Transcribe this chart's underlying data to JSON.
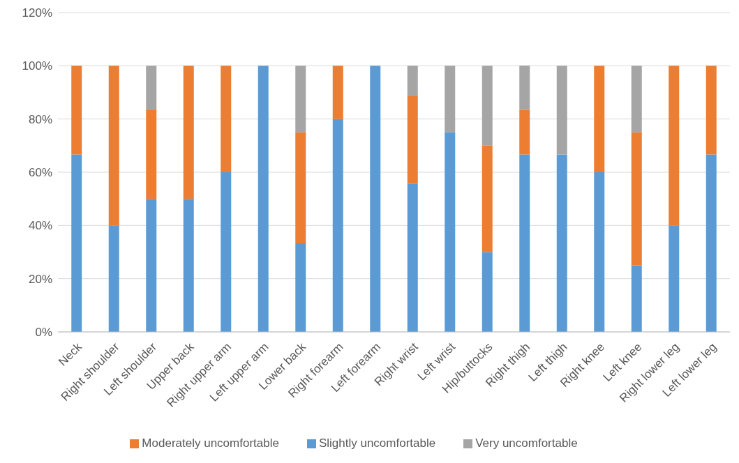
{
  "chart_data": {
    "type": "bar",
    "stacked": true,
    "categories": [
      "Neck",
      "Right shoulder",
      "Left shoulder",
      "Upper back",
      "Right upper arm",
      "Left upper arm",
      "Lower back",
      "Right forearm",
      "Left forearm",
      "Right wrist",
      "Left wrist",
      "Hip/buttocks",
      "Right thigh",
      "Left thigh",
      "Right knee",
      "Left knee",
      "Right lower leg",
      "Left lower leg"
    ],
    "series": [
      {
        "name": "Slightly uncomfortable",
        "color": "#5b9bd5",
        "values": [
          66.7,
          40,
          50,
          50,
          60,
          100,
          33.3,
          80,
          100,
          55.6,
          75,
          30,
          66.7,
          66.7,
          60,
          25,
          40,
          66.7
        ]
      },
      {
        "name": "Moderately uncomfortable",
        "color": "#ed7d31",
        "values": [
          33.3,
          60,
          33.3,
          50,
          40,
          0,
          41.7,
          20,
          0,
          33.3,
          0,
          40,
          16.7,
          0,
          40,
          50,
          60,
          33.3
        ]
      },
      {
        "name": "Very uncomfortable",
        "color": "#a5a5a5",
        "values": [
          0,
          0,
          16.7,
          0,
          0,
          0,
          25,
          0,
          0,
          11.1,
          25,
          30,
          16.7,
          33.3,
          0,
          25,
          0,
          0
        ]
      }
    ],
    "ylim": [
      0,
      120
    ],
    "yticks": [
      {
        "value": 0,
        "label": "0%"
      },
      {
        "value": 20,
        "label": "20%"
      },
      {
        "value": 40,
        "label": "40%"
      },
      {
        "value": 60,
        "label": "60%"
      },
      {
        "value": 80,
        "label": "80%"
      },
      {
        "value": 100,
        "label": "100%"
      },
      {
        "value": 120,
        "label": "120%"
      }
    ],
    "grid": "y",
    "legend": "bottom"
  }
}
